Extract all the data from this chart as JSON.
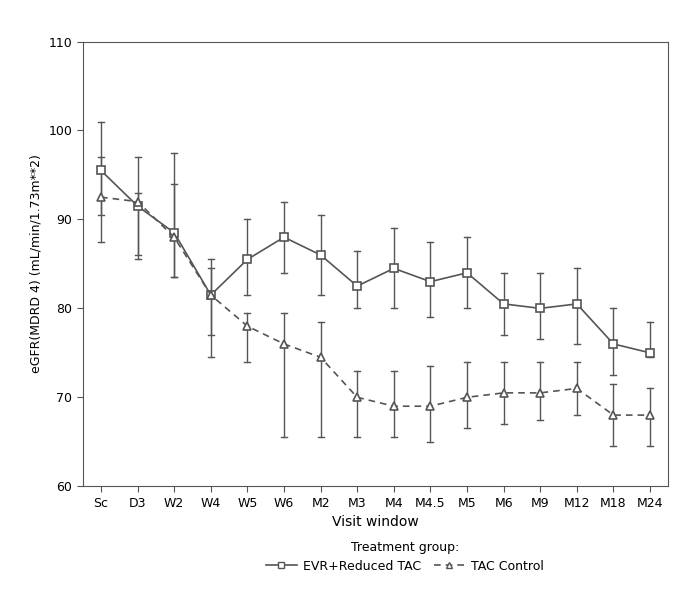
{
  "x_labels": [
    "Sc",
    "D3",
    "W2",
    "W4",
    "W5",
    "W6",
    "M2",
    "M3",
    "M4",
    "M4.5",
    "M5",
    "M6",
    "M9",
    "M12",
    "M18",
    "M24"
  ],
  "evr_mean": [
    95.5,
    91.5,
    88.5,
    81.5,
    85.5,
    88.0,
    86.0,
    82.5,
    84.5,
    83.0,
    84.0,
    80.5,
    80.0,
    80.5,
    76.0,
    75.0
  ],
  "evr_upper": [
    101.0,
    97.0,
    97.5,
    85.5,
    90.0,
    92.0,
    90.5,
    86.5,
    89.0,
    87.5,
    88.0,
    84.0,
    84.0,
    84.5,
    80.0,
    78.5
  ],
  "evr_lower": [
    90.5,
    85.5,
    83.5,
    77.0,
    81.5,
    84.0,
    81.5,
    80.0,
    80.0,
    79.0,
    80.0,
    77.0,
    76.5,
    76.0,
    72.5,
    74.5
  ],
  "tac_mean": [
    92.5,
    92.0,
    88.0,
    81.5,
    78.0,
    76.0,
    74.5,
    70.0,
    69.0,
    69.0,
    70.0,
    70.5,
    70.5,
    71.0,
    68.0,
    68.0
  ],
  "tac_upper": [
    97.0,
    93.0,
    94.0,
    84.5,
    79.5,
    79.5,
    78.5,
    73.0,
    73.0,
    73.5,
    74.0,
    74.0,
    74.0,
    74.0,
    71.5,
    71.0
  ],
  "tac_lower": [
    87.5,
    86.0,
    83.5,
    74.5,
    74.0,
    65.5,
    65.5,
    65.5,
    65.5,
    65.0,
    66.5,
    67.0,
    67.5,
    68.0,
    64.5,
    64.5
  ],
  "ylabel": "eGFR(MDRD 4) (mL/min/1.73m**2)",
  "xlabel": "Visit window",
  "ylim": [
    60,
    110
  ],
  "yticks": [
    60,
    70,
    80,
    90,
    100,
    110
  ],
  "evr_color": "#555555",
  "tac_color": "#555555",
  "legend_evr": "EVR+Reduced TAC",
  "legend_tac": "TAC Control",
  "bg_color": "#ffffff"
}
